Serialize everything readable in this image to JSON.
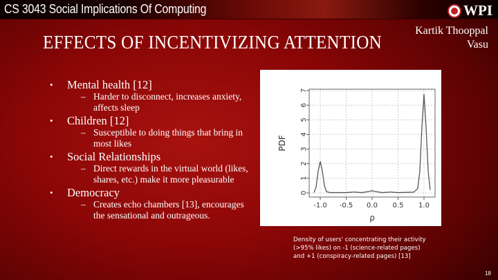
{
  "header": {
    "course": "CS 3043 Social Implications Of Computing",
    "logo_text": "WPI"
  },
  "slide": {
    "title": "EFFECTS OF INCENTIVIZING ATTENTION",
    "author": [
      "Kartik Thooppal",
      "Vasu"
    ],
    "bullets": [
      {
        "label": "Mental health [12]",
        "sub": [
          "Harder to disconnect, increases anxiety, affects sleep"
        ]
      },
      {
        "label": "Children [12]",
        "sub": [
          "Susceptible to doing things that bring in most likes"
        ]
      },
      {
        "label": "Social Relationships",
        "sub": [
          "Direct rewards in the virtual world (likes, shares, etc.) make it more pleasurable"
        ]
      },
      {
        "label": "Democracy",
        "sub": [
          "Creates echo chambers [13], encourages the sensational and outrageous."
        ]
      }
    ],
    "caption": "Density of users' concentrating their activity (>95% likes) on -1 (science-related pages) and +1 (conspiracy-related pages) [13]",
    "page_number": "18"
  },
  "chart_data": {
    "type": "line",
    "xlabel": "ρ",
    "ylabel": "PDF",
    "xlim": [
      -1.2,
      1.2
    ],
    "ylim": [
      0,
      7
    ],
    "xticks": [
      "-1.0",
      "-0.5",
      "0.0",
      "0.5",
      "1.0"
    ],
    "yticks": [
      "0",
      "1",
      "2",
      "3",
      "4",
      "5",
      "6",
      "7"
    ],
    "grid": true,
    "series": [
      {
        "color": "#555555",
        "x": [
          -1.12,
          -1.08,
          -1.04,
          -1.0,
          -0.96,
          -0.92,
          -0.88,
          -0.8,
          -0.5,
          -0.35,
          -0.2,
          -0.05,
          0.0,
          0.05,
          0.2,
          0.35,
          0.5,
          0.8,
          0.88,
          0.92,
          0.96,
          1.0,
          1.04,
          1.08,
          1.12
        ],
        "y": [
          0.02,
          0.4,
          1.5,
          2.15,
          1.5,
          0.5,
          0.08,
          0.02,
          0.02,
          0.06,
          0.02,
          0.1,
          0.15,
          0.1,
          0.02,
          0.06,
          0.02,
          0.05,
          0.3,
          1.5,
          4.5,
          6.75,
          4.5,
          1.5,
          0.2
        ]
      }
    ]
  }
}
